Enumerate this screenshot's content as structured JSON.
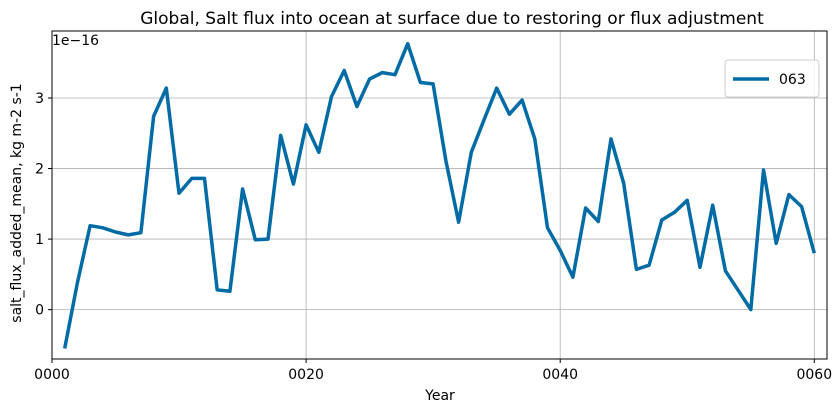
{
  "chart_data": {
    "type": "line",
    "title": "Global, Salt flux into ocean at surface due to restoring or flux adjustment",
    "xlabel": "Year",
    "ylabel": "salt_flux_added_mean, kg m-2 s-1",
    "y_offset_label": "1e−16",
    "xlim": [
      0,
      61
    ],
    "ylim": [
      -0.7,
      3.95
    ],
    "x_ticks": [
      0,
      20,
      40,
      60
    ],
    "x_tick_labels": [
      "0000",
      "0020",
      "0040",
      "0060"
    ],
    "y_ticks": [
      0,
      1,
      2,
      3
    ],
    "y_tick_labels": [
      "0",
      "1",
      "2",
      "3"
    ],
    "grid": true,
    "legend_position": "top-right",
    "series": [
      {
        "name": "063",
        "color": "#006BA4",
        "x": [
          1,
          2,
          3,
          4,
          5,
          6,
          7,
          8,
          9,
          10,
          11,
          12,
          13,
          14,
          15,
          16,
          17,
          18,
          19,
          20,
          21,
          22,
          23,
          24,
          25,
          26,
          27,
          28,
          29,
          30,
          31,
          32,
          33,
          34,
          35,
          36,
          37,
          38,
          39,
          40,
          41,
          42,
          43,
          44,
          45,
          46,
          47,
          48,
          49,
          50,
          51,
          52,
          53,
          55,
          56,
          57,
          58,
          59,
          60
        ],
        "values": [
          -0.55,
          0.38,
          1.19,
          1.16,
          1.1,
          1.06,
          1.09,
          2.74,
          3.14,
          1.65,
          1.86,
          1.86,
          0.28,
          0.26,
          1.71,
          0.99,
          1.0,
          2.47,
          1.78,
          2.62,
          2.23,
          3.02,
          3.39,
          2.88,
          3.27,
          3.36,
          3.33,
          3.77,
          3.22,
          3.2,
          2.11,
          1.24,
          2.23,
          2.69,
          3.14,
          2.77,
          2.97,
          2.42,
          1.16,
          0.84,
          0.46,
          1.44,
          1.25,
          2.42,
          1.79,
          0.57,
          0.63,
          1.27,
          1.38,
          1.55,
          0.6,
          1.48,
          0.55,
          0.0,
          1.98,
          0.94,
          1.63,
          1.46,
          0.8
        ]
      }
    ]
  }
}
